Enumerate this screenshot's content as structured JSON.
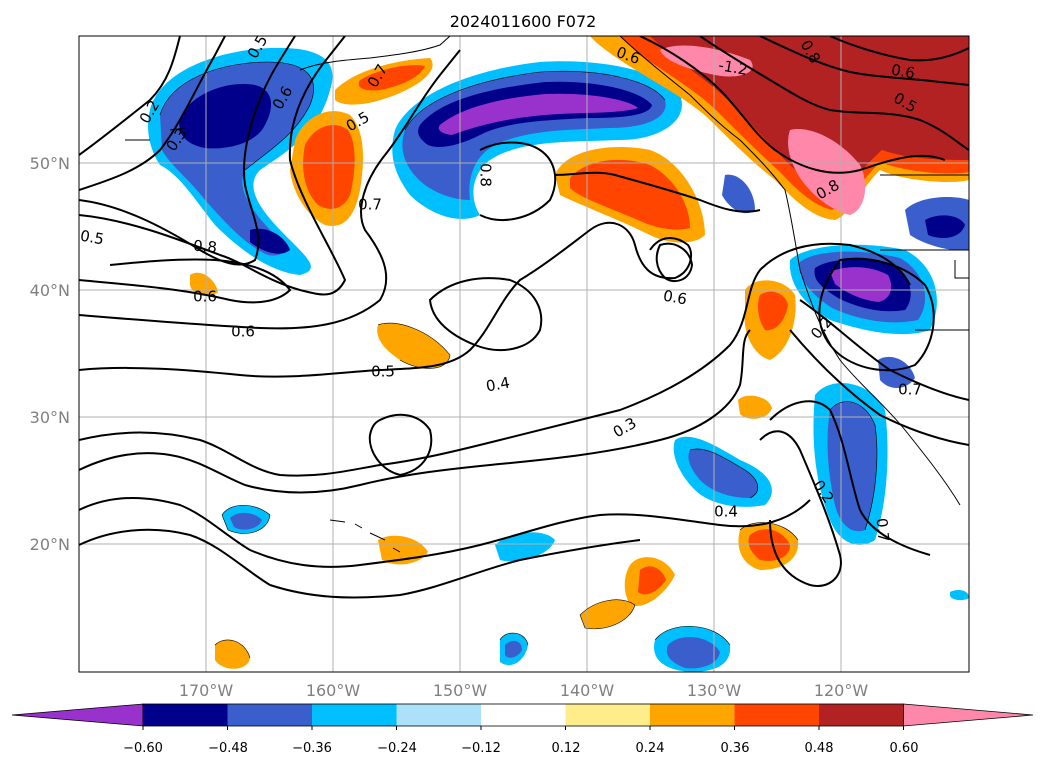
{
  "title": "2024011600 F072",
  "map": {
    "lat_labels": [
      "20°N",
      "30°N",
      "40°N",
      "50°N"
    ],
    "lon_labels": [
      "170°W",
      "160°W",
      "150°W",
      "140°W",
      "130°W",
      "120°W"
    ],
    "gridlines": true
  },
  "colorbar": {
    "labels": [
      "−0.60",
      "−0.48",
      "−0.36",
      "−0.24",
      "−0.12",
      "0.12",
      "0.24",
      "0.36",
      "0.48",
      "0.60"
    ],
    "colors": [
      "#9932CC",
      "#00008B",
      "#3A5FCD",
      "#00BFFF",
      "#ADE1FA",
      "#FFFFFF",
      "#FFEC8B",
      "#FFA500",
      "#FF4500",
      "#B22222",
      "#FF88AA"
    ],
    "extend": "both"
  },
  "contour_labels": [
    "-1.2",
    "0.6",
    "0.2",
    "0.3",
    "0.6",
    "0.5",
    "0.7",
    "0.8",
    "0.5",
    "0.7",
    "0.5",
    "0.8",
    "0.6",
    "0.6",
    "0.5",
    "0.6",
    "0.4",
    "0.3",
    "0.4",
    "0.2",
    "0.2",
    "0.7",
    "0.8",
    "0.5",
    "0.7",
    "0.6",
    "0.8"
  ]
}
